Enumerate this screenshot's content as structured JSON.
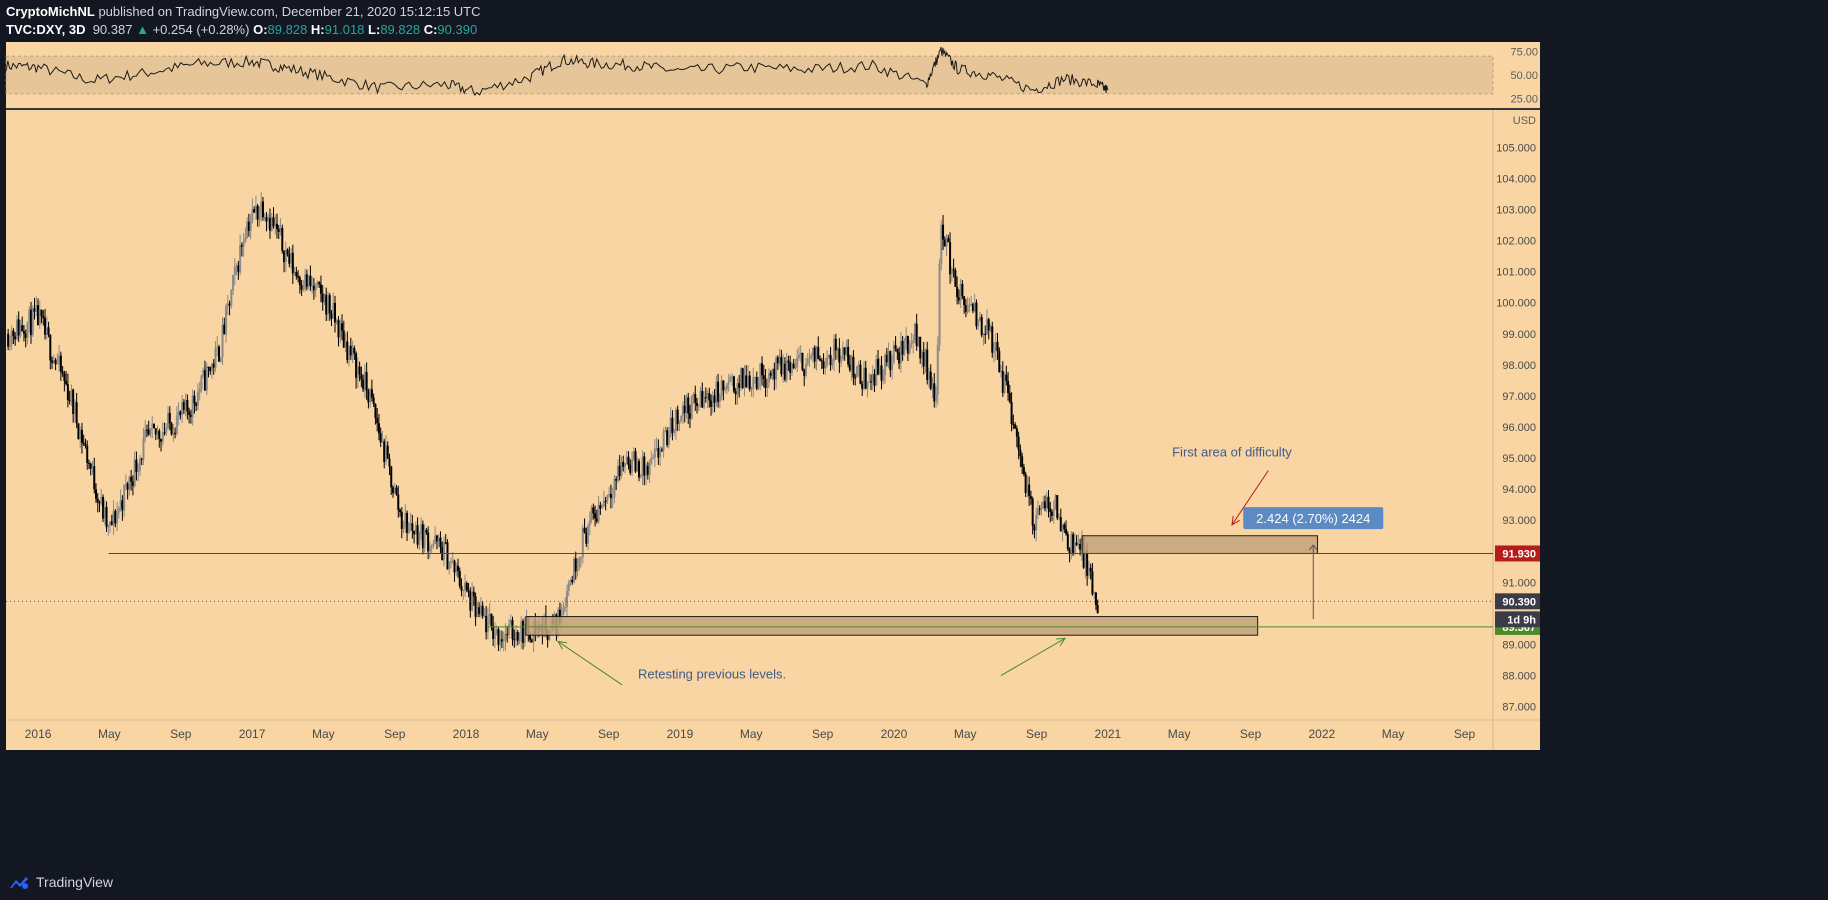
{
  "header": {
    "publisher": "CryptoMichNL",
    "published_text": " published on TradingView.com, December 21, 2020 15:12:15 UTC",
    "symbol": "TVC:DXY, 3D",
    "last": "90.387",
    "change_arrow": "▲",
    "change": "+0.254 (+0.28%)",
    "o_label": "O:",
    "o_value": "89.828",
    "h_label": "H:",
    "h_value": "91.018",
    "l_label": "L:",
    "l_value": "89.828",
    "c_label": "C:",
    "c_value": "90.390"
  },
  "footer": {
    "brand": "TradingView",
    "logo_icon": "tradingview-logo-icon"
  },
  "colors": {
    "chart_bg": "#f8d5a3",
    "dark_bg": "#131722",
    "red_line": "#b71c1c",
    "green_line": "#4c8a2a",
    "zone_fill": "#c4a37c",
    "annotation_text": "#3f5b8c",
    "measure_label_bg": "#5b8ac4",
    "price_tag_dark": "#3a3d47"
  },
  "chart_data": [
    {
      "type": "line",
      "panel": "oscillator",
      "yticks": [
        "75.00",
        "50.00",
        "25.00"
      ],
      "ylim": [
        15,
        85
      ],
      "band": [
        30,
        70
      ],
      "x": [
        2015.85,
        2016.0,
        2016.25,
        2016.5,
        2016.75,
        2017.0,
        2017.15,
        2017.35,
        2017.6,
        2017.9,
        2018.05,
        2018.3,
        2018.45,
        2018.6,
        2018.8,
        2019.0,
        2019.3,
        2019.6,
        2019.9,
        2020.15,
        2020.22,
        2020.3,
        2020.45,
        2020.65,
        2020.8,
        2020.95,
        2021.0
      ],
      "values": [
        60,
        58,
        44,
        52,
        62,
        64,
        58,
        48,
        36,
        40,
        32,
        48,
        66,
        62,
        60,
        54,
        58,
        56,
        60,
        40,
        76,
        56,
        50,
        34,
        46,
        40,
        34
      ]
    },
    {
      "type": "candlestick",
      "panel": "price",
      "currency": "USD",
      "ylim": [
        86.7,
        106.2
      ],
      "yticks": [
        "105.000",
        "104.000",
        "103.000",
        "102.000",
        "101.000",
        "100.000",
        "99.000",
        "98.000",
        "97.000",
        "96.000",
        "95.000",
        "94.000",
        "93.000",
        "91.000",
        "89.000",
        "88.000",
        "87.000"
      ],
      "xticks": [
        "2016",
        "May",
        "Sep",
        "2017",
        "May",
        "Sep",
        "2018",
        "May",
        "Sep",
        "2019",
        "May",
        "Sep",
        "2020",
        "May",
        "Sep",
        "2021",
        "May",
        "Sep",
        "2022",
        "May",
        "Sep"
      ],
      "path_x": [
        2015.85,
        2016.0,
        2016.15,
        2016.33,
        2016.5,
        2016.7,
        2016.85,
        2016.97,
        2017.05,
        2017.2,
        2017.35,
        2017.55,
        2017.7,
        2017.9,
        2018.05,
        2018.15,
        2018.3,
        2018.42,
        2018.55,
        2018.75,
        2018.85,
        2019.0,
        2019.3,
        2019.55,
        2019.75,
        2019.85,
        2020.0,
        2020.1,
        2020.2,
        2020.22,
        2020.27,
        2020.32,
        2020.45,
        2020.55,
        2020.65,
        2020.75,
        2020.8,
        2020.88,
        2020.96
      ],
      "path_y": [
        99.0,
        99.5,
        97.0,
        92.6,
        95.5,
        96.5,
        98.5,
        102.5,
        103.2,
        101.0,
        100.0,
        97.0,
        93.0,
        92.0,
        90.0,
        89.3,
        89.5,
        89.6,
        92.5,
        95.0,
        94.5,
        96.5,
        97.5,
        98.0,
        98.5,
        97.5,
        98.2,
        99.0,
        97.0,
        102.8,
        101.0,
        100.0,
        99.0,
        96.5,
        93.0,
        93.6,
        92.5,
        92.0,
        89.83
      ],
      "last_close": 90.39,
      "levels": [
        {
          "price": 91.93,
          "label": "91.930",
          "color": "#b71c1c",
          "from_x": 2016.33
        },
        {
          "price": 89.567,
          "label": "89.567",
          "color": "#4c8a2a",
          "from_x": 2018.1
        }
      ],
      "current_tag": {
        "label": "90.390",
        "timer": "1d 9h"
      },
      "zones": [
        {
          "x0": 2020.88,
          "x1": 2021.98,
          "y0": 91.93,
          "y1": 92.5
        },
        {
          "x0": 2018.28,
          "x1": 2021.7,
          "y0": 89.3,
          "y1": 89.9
        }
      ],
      "measure": {
        "x": 2021.96,
        "y0": 89.82,
        "y1": 92.2,
        "label": "2.424 (2.70%) 2424"
      },
      "annotations": [
        {
          "text": "First area of difficulty",
          "x": 2021.58,
          "y": 95.05
        },
        {
          "text": "Retesting previous levels.",
          "x": 2019.15,
          "y": 87.9
        }
      ],
      "arrows": [
        {
          "x0": 2021.75,
          "y0": 94.6,
          "x1": 2021.58,
          "y1": 92.85,
          "color": "#b71c1c"
        },
        {
          "x0": 2018.73,
          "y0": 87.7,
          "x1": 2018.43,
          "y1": 89.1,
          "color": "#4c8a2a"
        },
        {
          "x0": 2020.5,
          "y0": 88.0,
          "x1": 2020.8,
          "y1": 89.2,
          "color": "#4c8a2a"
        }
      ]
    }
  ]
}
